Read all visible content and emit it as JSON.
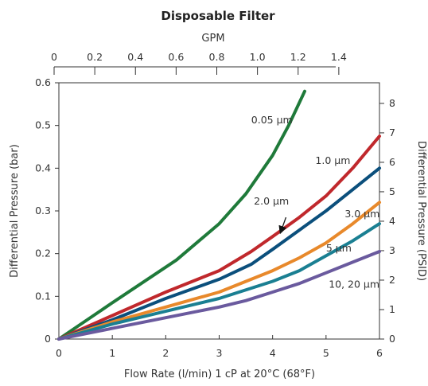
{
  "chart_data": {
    "type": "line",
    "title": "Disposable Filter",
    "xlabel": "Flow Rate (l/min) 1 cP at 20°C (68°F)",
    "ylabel": "Differential Pressure (bar)",
    "top_axis_label": "GPM",
    "right_axis_label": "Differential Pressure (PSID)",
    "xlim": [
      0,
      6
    ],
    "ylim": [
      0,
      0.6
    ],
    "top_axis_range": [
      0,
      1.6
    ],
    "right_axis_range": [
      0,
      8.7
    ],
    "x_ticks": [
      "0",
      "1",
      "2",
      "3",
      "4",
      "5",
      "6"
    ],
    "y_ticks": [
      "0",
      "0.1",
      "0.2",
      "0.3",
      "0.4",
      "0.5",
      "0.6"
    ],
    "top_ticks": [
      "0",
      "0.2",
      "0.4",
      "0.6",
      "0.8",
      "1.0",
      "1.2",
      "1.4"
    ],
    "right_ticks": [
      "0",
      "1",
      "2",
      "3",
      "4",
      "5",
      "6",
      "7",
      "8"
    ],
    "grid": false,
    "series": [
      {
        "name": "0.05 µm",
        "color": "#1f7a3a",
        "points": [
          [
            0,
            0
          ],
          [
            1,
            0.085
          ],
          [
            2.2,
            0.185
          ],
          [
            3,
            0.27
          ],
          [
            3.5,
            0.34
          ],
          [
            4,
            0.43
          ],
          [
            4.3,
            0.5
          ],
          [
            4.6,
            0.58
          ]
        ]
      },
      {
        "name": "1.0 µm",
        "color": "#c0282c",
        "points": [
          [
            0,
            0
          ],
          [
            1,
            0.055
          ],
          [
            2,
            0.11
          ],
          [
            3,
            0.16
          ],
          [
            3.6,
            0.205
          ],
          [
            4,
            0.24
          ],
          [
            4.5,
            0.285
          ],
          [
            5,
            0.335
          ],
          [
            5.5,
            0.4
          ],
          [
            6,
            0.475
          ]
        ]
      },
      {
        "name": "2.0 µm",
        "color": "#0b4f7c",
        "points": [
          [
            0,
            0
          ],
          [
            1,
            0.045
          ],
          [
            2,
            0.095
          ],
          [
            3,
            0.14
          ],
          [
            3.6,
            0.175
          ],
          [
            4,
            0.21
          ],
          [
            4.5,
            0.255
          ],
          [
            5,
            0.3
          ],
          [
            5.5,
            0.35
          ],
          [
            6,
            0.4
          ]
        ]
      },
      {
        "name": "3.0 µm",
        "color": "#e8892b",
        "points": [
          [
            0,
            0
          ],
          [
            1,
            0.04
          ],
          [
            2,
            0.075
          ],
          [
            3,
            0.11
          ],
          [
            4,
            0.16
          ],
          [
            4.5,
            0.19
          ],
          [
            5,
            0.225
          ],
          [
            5.5,
            0.27
          ],
          [
            6,
            0.32
          ]
        ]
      },
      {
        "name": "5 µm",
        "color": "#1a7f92",
        "points": [
          [
            0,
            0
          ],
          [
            1,
            0.035
          ],
          [
            2,
            0.065
          ],
          [
            3,
            0.095
          ],
          [
            4,
            0.135
          ],
          [
            4.5,
            0.16
          ],
          [
            5,
            0.195
          ],
          [
            5.5,
            0.23
          ],
          [
            6,
            0.27
          ]
        ]
      },
      {
        "name": "10, 20 µm",
        "color": "#6a5a9e",
        "points": [
          [
            0,
            0
          ],
          [
            1,
            0.025
          ],
          [
            2,
            0.05
          ],
          [
            3,
            0.075
          ],
          [
            3.5,
            0.09
          ],
          [
            4,
            0.11
          ],
          [
            4.5,
            0.13
          ],
          [
            5,
            0.155
          ],
          [
            5.5,
            0.18
          ],
          [
            6,
            0.205
          ]
        ]
      }
    ],
    "labels": [
      {
        "text": "0.05 µm",
        "x": 3.6,
        "y": 0.505
      },
      {
        "text": "1.0 µm",
        "x": 4.8,
        "y": 0.41
      },
      {
        "text": "2.0 µm",
        "x": 3.65,
        "y": 0.315
      },
      {
        "text": "3.0 µm",
        "x": 5.35,
        "y": 0.285
      },
      {
        "text": "5 µm",
        "x": 5.0,
        "y": 0.205
      },
      {
        "text": "10, 20 µm",
        "x": 5.05,
        "y": 0.12
      }
    ],
    "annotation_arrow": {
      "from": [
        4.25,
        0.285
      ],
      "to": [
        4.15,
        0.25
      ]
    }
  }
}
